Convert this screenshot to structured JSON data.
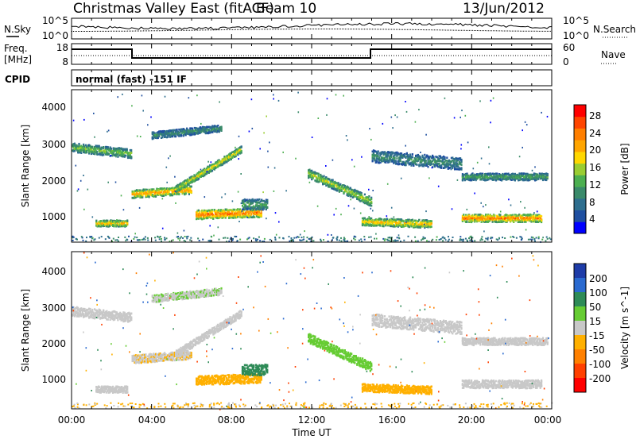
{
  "header": {
    "radar": "Christmas Valley East (fitACF)",
    "beam": "Beam 10",
    "date": "13/Jun/2012"
  },
  "panels": {
    "nsky": {
      "label": "N.Sky",
      "ticks": [
        "10^5",
        "10^0"
      ],
      "right_label": "N.Search",
      "right_ticks": [
        "10^5",
        "10^0"
      ]
    },
    "freq": {
      "label_line1": "Freq.",
      "label_line2": "[MHz]",
      "ticks": [
        "18",
        "8"
      ],
      "right_label": "Nave",
      "right_ticks": [
        "60",
        "0"
      ]
    },
    "cpid": {
      "label": "CPID",
      "text": "normal (fast) -151 IF"
    }
  },
  "axes": {
    "ylabel": "Slant Range [km]",
    "yticks": [
      "4000",
      "3000",
      "2000",
      "1000"
    ],
    "xlabel": "Time UT",
    "xticks": [
      "00:00",
      "04:00",
      "08:00",
      "12:00",
      "16:00",
      "20:00",
      "00:00"
    ]
  },
  "colorbars": {
    "power": {
      "label": "Power [dB]",
      "ticks": [
        "28",
        "24",
        "20",
        "16",
        "12",
        "8",
        "4"
      ],
      "colors": [
        "#0000ff",
        "#1f4fa0",
        "#2e6e8e",
        "#3a8a6a",
        "#4caf50",
        "#9acd32",
        "#ffd700",
        "#ffa500",
        "#ff7f00",
        "#ff4500",
        "#ff0000"
      ]
    },
    "velocity": {
      "label": "Velocity [m s^-1]",
      "ticks": [
        "200",
        "100",
        "50",
        "15",
        "-15",
        "-50",
        "-100",
        "-200"
      ],
      "colors": [
        "#1e3ca8",
        "#2a6ad0",
        "#2e8b57",
        "#66cc33",
        "#c8c8c8",
        "#ffb000",
        "#ff8000",
        "#ff4000",
        "#ff0000"
      ]
    }
  },
  "chart_data": {
    "type": "heatmap",
    "title": "Christmas Valley East (fitACF)",
    "x_range_hours": [
      0,
      24
    ],
    "y_range_km": [
      180,
      4600
    ],
    "power_scale_db": [
      0,
      30
    ],
    "velocity_scale": [
      -250,
      250
    ],
    "echo_regions": [
      {
        "t0": 0.0,
        "t1": 3.0,
        "r": 2950,
        "w": 260,
        "slope": -60,
        "power": 14,
        "vel": -5
      },
      {
        "t0": 3.0,
        "t1": 6.0,
        "r": 1600,
        "w": 230,
        "slope": 40,
        "power": 22,
        "vel": -10
      },
      {
        "t0": 5.2,
        "t1": 8.5,
        "r": 1750,
        "w": 200,
        "slope": 350,
        "power": 18,
        "vel": -5
      },
      {
        "t0": 4.0,
        "t1": 7.5,
        "r": 3300,
        "w": 200,
        "slope": 60,
        "power": 10,
        "vel": 10
      },
      {
        "t0": 6.2,
        "t1": 9.5,
        "r": 1000,
        "w": 260,
        "slope": 20,
        "power": 25,
        "vel": -30
      },
      {
        "t0": 8.5,
        "t1": 9.8,
        "r": 1300,
        "w": 300,
        "slope": 0,
        "power": 12,
        "vel": 60
      },
      {
        "t0": 1.2,
        "t1": 2.8,
        "r": 750,
        "w": 180,
        "slope": 0,
        "power": 20,
        "vel": -5
      },
      {
        "t0": 11.8,
        "t1": 15.0,
        "r": 2200,
        "w": 260,
        "slope": -260,
        "power": 16,
        "vel": 40
      },
      {
        "t0": 15.0,
        "t1": 19.5,
        "r": 2700,
        "w": 350,
        "slope": -50,
        "power": 10,
        "vel": -5
      },
      {
        "t0": 19.5,
        "t1": 23.8,
        "r": 2100,
        "w": 200,
        "slope": 0,
        "power": 12,
        "vel": -5
      },
      {
        "t0": 14.5,
        "t1": 18.0,
        "r": 800,
        "w": 220,
        "slope": -20,
        "power": 20,
        "vel": -40
      },
      {
        "t0": 19.5,
        "t1": 23.5,
        "r": 900,
        "w": 220,
        "slope": 0,
        "power": 24,
        "vel": -5
      }
    ]
  }
}
